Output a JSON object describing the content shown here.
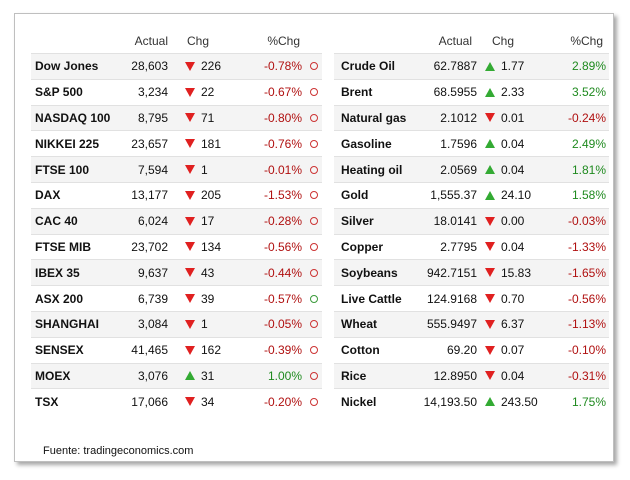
{
  "colors": {
    "down": "#e02020",
    "up": "#33aa33",
    "pct_down": "#b01010",
    "pct_up": "#1f8a1f"
  },
  "left_table": {
    "headers": {
      "actual": "Actual",
      "chg": "Chg",
      "pct": "%Chg"
    },
    "rows": [
      {
        "name": "Dow Jones",
        "actual": "28,603",
        "dir": "down",
        "chg": "226",
        "pct": "-0.78%",
        "status": "red"
      },
      {
        "name": "S&P 500",
        "actual": "3,234",
        "dir": "down",
        "chg": "22",
        "pct": "-0.67%",
        "status": "red"
      },
      {
        "name": "NASDAQ 100",
        "actual": "8,795",
        "dir": "down",
        "chg": "71",
        "pct": "-0.80%",
        "status": "red"
      },
      {
        "name": "NIKKEI 225",
        "actual": "23,657",
        "dir": "down",
        "chg": "181",
        "pct": "-0.76%",
        "status": "red"
      },
      {
        "name": "FTSE 100",
        "actual": "7,594",
        "dir": "down",
        "chg": "1",
        "pct": "-0.01%",
        "status": "red"
      },
      {
        "name": "DAX",
        "actual": "13,177",
        "dir": "down",
        "chg": "205",
        "pct": "-1.53%",
        "status": "red"
      },
      {
        "name": "CAC 40",
        "actual": "6,024",
        "dir": "down",
        "chg": "17",
        "pct": "-0.28%",
        "status": "red"
      },
      {
        "name": "FTSE MIB",
        "actual": "23,702",
        "dir": "down",
        "chg": "134",
        "pct": "-0.56%",
        "status": "red"
      },
      {
        "name": "IBEX 35",
        "actual": "9,637",
        "dir": "down",
        "chg": "43",
        "pct": "-0.44%",
        "status": "red"
      },
      {
        "name": "ASX 200",
        "actual": "6,739",
        "dir": "down",
        "chg": "39",
        "pct": "-0.57%",
        "status": "green"
      },
      {
        "name": "SHANGHAI",
        "actual": "3,084",
        "dir": "down",
        "chg": "1",
        "pct": "-0.05%",
        "status": "red"
      },
      {
        "name": "SENSEX",
        "actual": "41,465",
        "dir": "down",
        "chg": "162",
        "pct": "-0.39%",
        "status": "red"
      },
      {
        "name": "MOEX",
        "actual": "3,076",
        "dir": "up",
        "chg": "31",
        "pct": "1.00%",
        "status": "red"
      },
      {
        "name": "TSX",
        "actual": "17,066",
        "dir": "down",
        "chg": "34",
        "pct": "-0.20%",
        "status": "red"
      }
    ]
  },
  "right_table": {
    "headers": {
      "actual": "Actual",
      "chg": "Chg",
      "pct": "%Chg"
    },
    "rows": [
      {
        "name": "Crude Oil",
        "actual": "62.7887",
        "dir": "up",
        "chg": "1.77",
        "pct": "2.89%"
      },
      {
        "name": "Brent",
        "actual": "68.5955",
        "dir": "up",
        "chg": "2.33",
        "pct": "3.52%"
      },
      {
        "name": "Natural gas",
        "actual": "2.1012",
        "dir": "down",
        "chg": "0.01",
        "pct": "-0.24%"
      },
      {
        "name": "Gasoline",
        "actual": "1.7596",
        "dir": "up",
        "chg": "0.04",
        "pct": "2.49%"
      },
      {
        "name": "Heating oil",
        "actual": "2.0569",
        "dir": "up",
        "chg": "0.04",
        "pct": "1.81%"
      },
      {
        "name": "Gold",
        "actual": "1,555.37",
        "dir": "up",
        "chg": "24.10",
        "pct": "1.58%"
      },
      {
        "name": "Silver",
        "actual": "18.0141",
        "dir": "down",
        "chg": "0.00",
        "pct": "-0.03%"
      },
      {
        "name": "Copper",
        "actual": "2.7795",
        "dir": "down",
        "chg": "0.04",
        "pct": "-1.33%"
      },
      {
        "name": "Soybeans",
        "actual": "942.7151",
        "dir": "down",
        "chg": "15.83",
        "pct": "-1.65%"
      },
      {
        "name": "Live Cattle",
        "actual": "124.9168",
        "dir": "down",
        "chg": "0.70",
        "pct": "-0.56%"
      },
      {
        "name": "Wheat",
        "actual": "555.9497",
        "dir": "down",
        "chg": "6.37",
        "pct": "-1.13%"
      },
      {
        "name": "Cotton",
        "actual": "69.20",
        "dir": "down",
        "chg": "0.07",
        "pct": "-0.10%"
      },
      {
        "name": "Rice",
        "actual": "12.8950",
        "dir": "down",
        "chg": "0.04",
        "pct": "-0.31%"
      },
      {
        "name": "Nickel",
        "actual": "14,193.50",
        "dir": "up",
        "chg": "243.50",
        "pct": "1.75%"
      }
    ]
  },
  "source": "Fuente: tradingeconomics.com"
}
